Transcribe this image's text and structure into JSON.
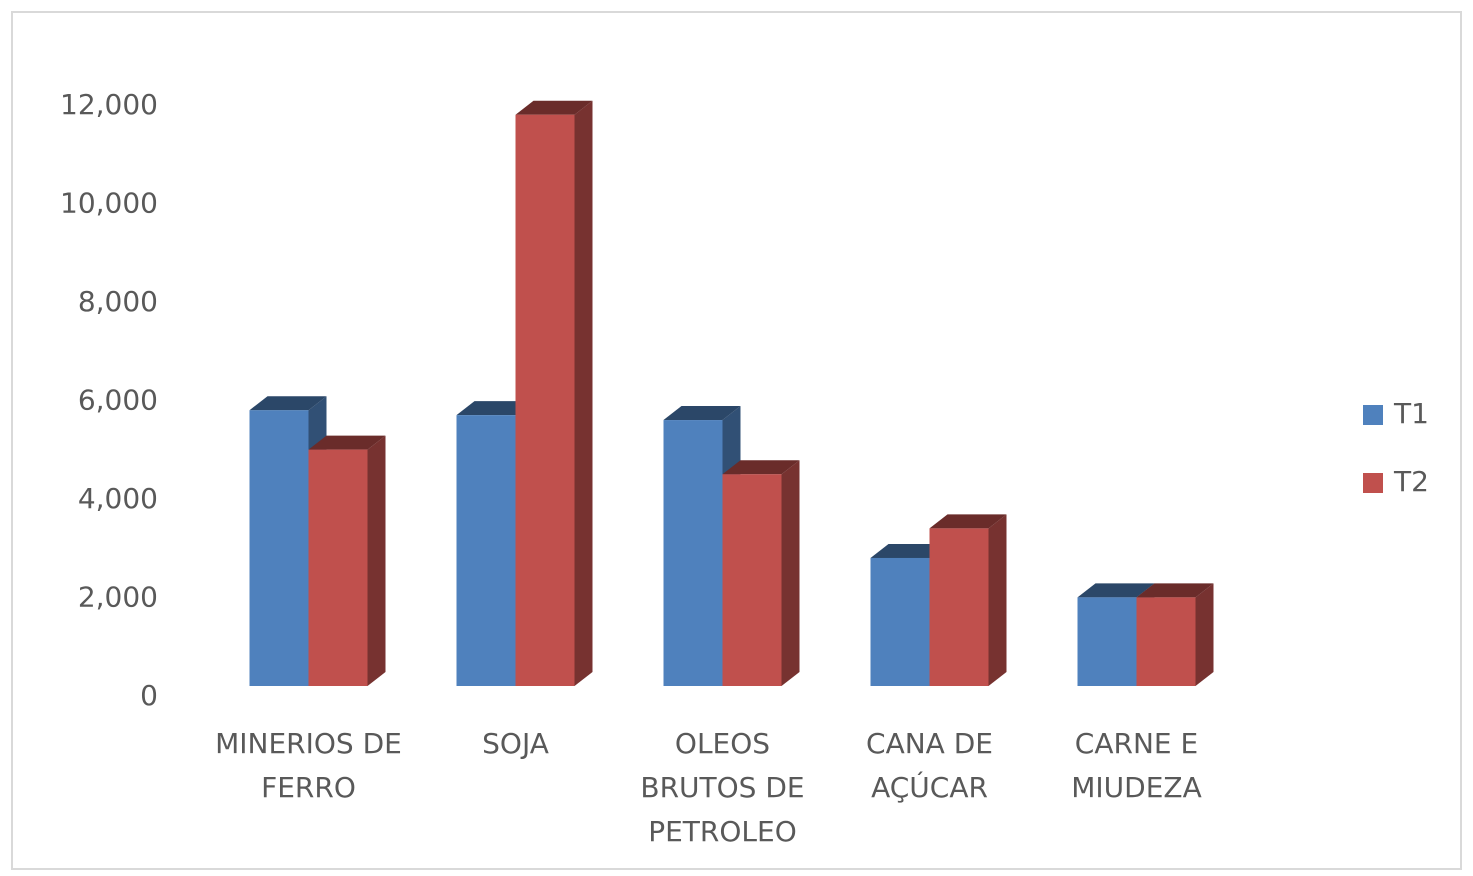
{
  "chart_data": {
    "type": "bar3d",
    "categories": [
      "MINERIOS DE FERRO",
      "SOJA",
      "OLEOS BRUTOS DE PETROLEO",
      "CANA DE AÇÚCAR",
      "CARNE E MIUDEZA"
    ],
    "series": [
      {
        "name": "T1",
        "color": "#4f81bd",
        "values": [
          5600,
          5500,
          5400,
          2600,
          1800
        ]
      },
      {
        "name": "T2",
        "color": "#c0504d",
        "values": [
          4800,
          11600,
          4300,
          3200,
          1800
        ]
      }
    ],
    "ylim": [
      0,
      12000
    ],
    "yticks": [
      0,
      {
        "value": 2000,
        "label": "2,000"
      },
      {
        "value": 4000,
        "label": "4,000"
      },
      {
        "value": 6000,
        "label": "6,000"
      },
      {
        "value": 8000,
        "label": "8,000"
      },
      {
        "value": 10000,
        "label": "10,000"
      },
      {
        "value": 12000,
        "label": "12,000"
      }
    ],
    "grid": false,
    "legend": "right"
  }
}
